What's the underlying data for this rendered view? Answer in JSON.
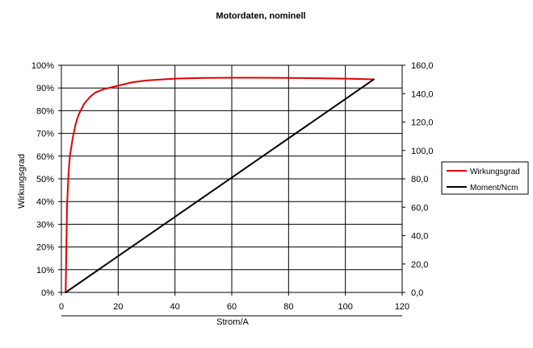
{
  "chart_data": {
    "type": "line",
    "title": "Motordaten, nominell",
    "xlabel": "Strom/A",
    "ylabel": "Wirkungsgrad",
    "y2label": "",
    "xlim": [
      0,
      120
    ],
    "ylim": [
      0,
      100
    ],
    "y2lim": [
      0,
      160
    ],
    "x_ticks": [
      "0",
      "20",
      "40",
      "60",
      "80",
      "100",
      "120"
    ],
    "y_ticks": [
      "0%",
      "10%",
      "20%",
      "30%",
      "40%",
      "50%",
      "60%",
      "70%",
      "80%",
      "90%",
      "100%"
    ],
    "y2_ticks": [
      "0,0",
      "20,0",
      "40,0",
      "60,0",
      "80,0",
      "100,0",
      "120,0",
      "140,0",
      "160,0"
    ],
    "grid": true,
    "legend_position": "right",
    "series": [
      {
        "name": "Wirkungsgrad",
        "axis": "left",
        "color": "#e00000",
        "x": [
          1.5,
          2,
          2.5,
          3,
          4,
          5,
          6,
          8,
          10,
          12,
          15,
          20,
          25,
          30,
          40,
          50,
          60,
          70,
          80,
          90,
          100,
          110
        ],
        "y": [
          0,
          38,
          52,
          60,
          68,
          74,
          78,
          83,
          86,
          88,
          89.5,
          91,
          92.5,
          93.3,
          94.1,
          94.4,
          94.5,
          94.5,
          94.4,
          94.3,
          94.1,
          93.8
        ]
      },
      {
        "name": "Moment/Ncm",
        "axis": "right",
        "color": "#000000",
        "x": [
          1.5,
          110
        ],
        "y": [
          0,
          150
        ]
      }
    ]
  }
}
